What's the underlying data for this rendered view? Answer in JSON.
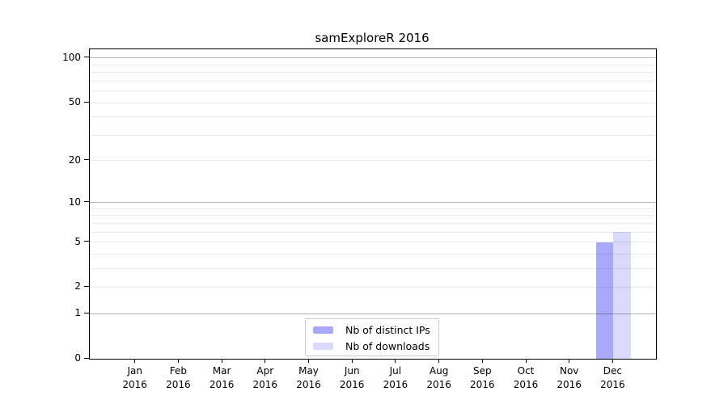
{
  "title": "samExploreR 2016",
  "chart_data": {
    "type": "bar",
    "title": "samExploreR 2016",
    "yscale": "log1p",
    "ylim": [
      0,
      115
    ],
    "grid": "horizontal",
    "legend_position": "lower center",
    "categories": [
      {
        "month": "Jan",
        "year": "2016"
      },
      {
        "month": "Feb",
        "year": "2016"
      },
      {
        "month": "Mar",
        "year": "2016"
      },
      {
        "month": "Apr",
        "year": "2016"
      },
      {
        "month": "May",
        "year": "2016"
      },
      {
        "month": "Jun",
        "year": "2016"
      },
      {
        "month": "Jul",
        "year": "2016"
      },
      {
        "month": "Aug",
        "year": "2016"
      },
      {
        "month": "Sep",
        "year": "2016"
      },
      {
        "month": "Oct",
        "year": "2016"
      },
      {
        "month": "Nov",
        "year": "2016"
      },
      {
        "month": "Dec",
        "year": "2016"
      }
    ],
    "series": [
      {
        "name": "Nb of distinct IPs",
        "color": "#a9a9fb",
        "values": [
          0,
          0,
          0,
          0,
          0,
          0,
          0,
          0,
          0,
          0,
          0,
          5
        ]
      },
      {
        "name": "Nb of downloads",
        "color": "#d9d9fb",
        "values": [
          0,
          0,
          0,
          0,
          0,
          0,
          0,
          0,
          0,
          0,
          0,
          6
        ]
      }
    ],
    "y_ticks": [
      0,
      1,
      2,
      5,
      10,
      20,
      50,
      100
    ],
    "y_tick_labels": [
      "0",
      "1",
      "2",
      "5",
      "10",
      "20",
      "50",
      "100"
    ],
    "grid_major_values": [
      1,
      10,
      100
    ],
    "grid_minor_values": [
      2,
      3,
      4,
      5,
      6,
      7,
      8,
      9,
      20,
      30,
      40,
      50,
      60,
      70,
      80,
      90
    ]
  },
  "colors": {
    "axis": "#000000",
    "grid_major": "#b3b3b3",
    "grid_minor": "#ebebeb",
    "legend_border": "#cccccc",
    "background": "#ffffff"
  }
}
